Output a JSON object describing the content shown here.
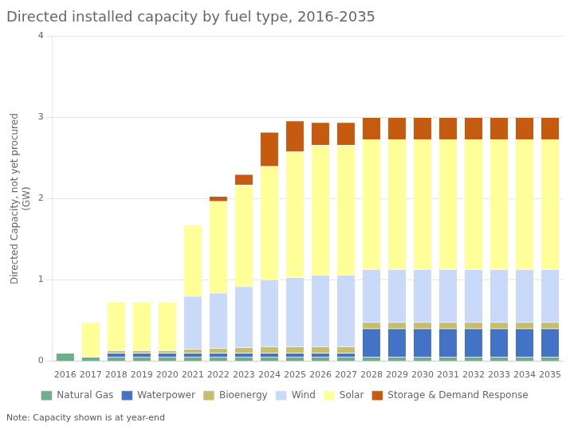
{
  "chart_data": {
    "type": "bar",
    "title": "Directed installed capacity by fuel type, 2016-2035",
    "ylabel": "Directed Capacity, not yet procured\n(GW)",
    "annotation": "Note: Capacity shown is at year-end",
    "categories": [
      "2016",
      "2017",
      "2018",
      "2019",
      "2020",
      "2021",
      "2022",
      "2023",
      "2024",
      "2025",
      "2026",
      "2027",
      "2028",
      "2029",
      "2030",
      "2031",
      "2032",
      "2033",
      "2034",
      "2035"
    ],
    "series": [
      {
        "name": "Natural Gas",
        "color": "#70ad8a",
        "values": [
          0.1,
          0.05,
          0.05,
          0.05,
          0.05,
          0.05,
          0.05,
          0.05,
          0.05,
          0.05,
          0.05,
          0.05,
          0.05,
          0.05,
          0.05,
          0.05,
          0.05,
          0.05,
          0.05,
          0.05
        ]
      },
      {
        "name": "Waterpower",
        "color": "#4472c4",
        "values": [
          0.0,
          0.0,
          0.05,
          0.05,
          0.05,
          0.05,
          0.05,
          0.05,
          0.05,
          0.05,
          0.05,
          0.05,
          0.35,
          0.35,
          0.35,
          0.35,
          0.35,
          0.35,
          0.35,
          0.35
        ]
      },
      {
        "name": "Bioenergy",
        "color": "#c5be6e",
        "values": [
          0.0,
          0.0,
          0.03,
          0.03,
          0.03,
          0.05,
          0.06,
          0.07,
          0.08,
          0.08,
          0.08,
          0.08,
          0.08,
          0.08,
          0.08,
          0.08,
          0.08,
          0.08,
          0.08,
          0.08
        ]
      },
      {
        "name": "Wind",
        "color": "#c9daf8",
        "values": [
          0.0,
          0.0,
          0.0,
          0.0,
          0.0,
          0.65,
          0.68,
          0.75,
          0.82,
          0.85,
          0.88,
          0.88,
          0.65,
          0.65,
          0.65,
          0.65,
          0.65,
          0.65,
          0.65,
          0.65
        ]
      },
      {
        "name": "Solar",
        "color": "#ffff99",
        "values": [
          0.0,
          0.43,
          0.6,
          0.6,
          0.6,
          0.88,
          1.13,
          1.25,
          1.4,
          1.55,
          1.6,
          1.6,
          1.6,
          1.6,
          1.6,
          1.6,
          1.6,
          1.6,
          1.6,
          1.6
        ]
      },
      {
        "name": "Storage & Demand Response",
        "color": "#c55a11",
        "values": [
          0.0,
          0.0,
          0.0,
          0.0,
          0.0,
          0.0,
          0.06,
          0.13,
          0.42,
          0.38,
          0.28,
          0.28,
          0.27,
          0.27,
          0.27,
          0.27,
          0.27,
          0.27,
          0.27,
          0.27
        ]
      }
    ],
    "stacked": true,
    "ylim": [
      0,
      4
    ],
    "yticks": [
      0,
      1,
      2,
      3,
      4
    ],
    "grid": true,
    "legend": "bottom"
  }
}
